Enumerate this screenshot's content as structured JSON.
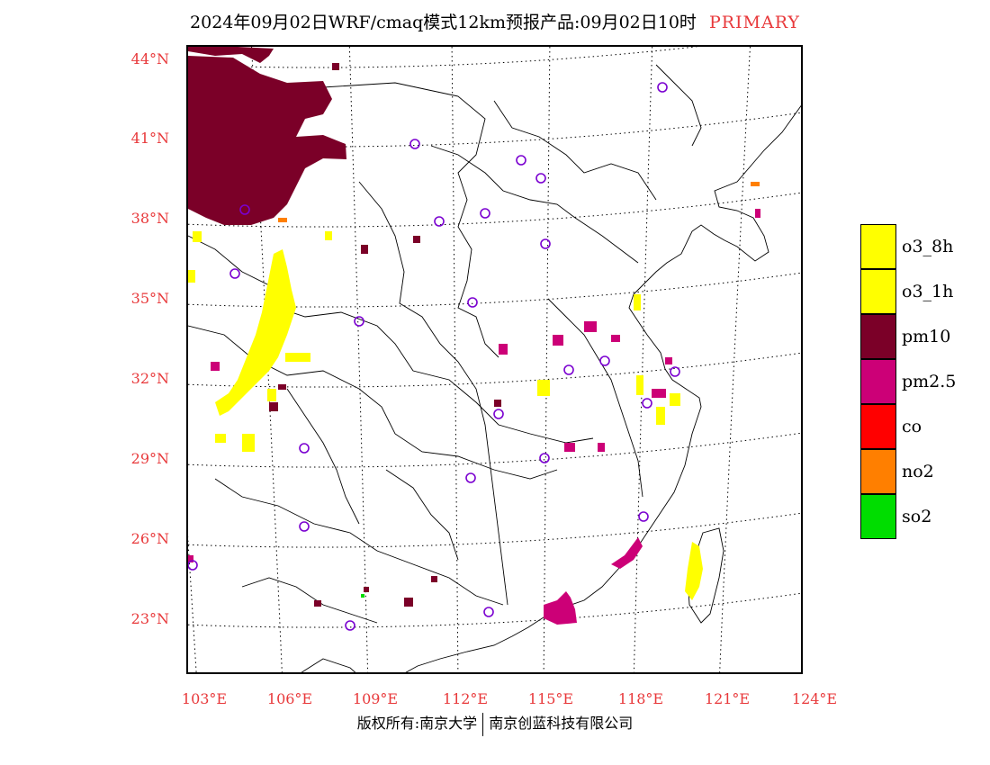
{
  "title": {
    "main": "2024年09月02日WRF/cmaq模式12km预报产品:09月02日10时",
    "tag": "PRIMARY",
    "tag_color": "#e8393b"
  },
  "latitude_labels": [
    "44°N",
    "41°N",
    "38°N",
    "35°N",
    "32°N",
    "29°N",
    "26°N",
    "23°N"
  ],
  "longitude_labels": [
    "103°E",
    "106°E",
    "109°E",
    "112°E",
    "115°E",
    "118°E",
    "121°E",
    "124°E"
  ],
  "label_color": "#e8393b",
  "legend": [
    {
      "label": "o3_8h",
      "color": "#ffff00"
    },
    {
      "label": "o3_1h",
      "color": "#ffff00"
    },
    {
      "label": "pm10",
      "color": "#7b0028"
    },
    {
      "label": "pm2.5",
      "color": "#cc0077"
    },
    {
      "label": "co",
      "color": "#ff0000"
    },
    {
      "label": "no2",
      "color": "#ff7f00"
    },
    {
      "label": "so2",
      "color": "#00dd00"
    }
  ],
  "station_marker_color": "#7a00d0",
  "footer": {
    "left": "版权所有:南京大学",
    "right": "南京创蓝科技有限公司"
  }
}
